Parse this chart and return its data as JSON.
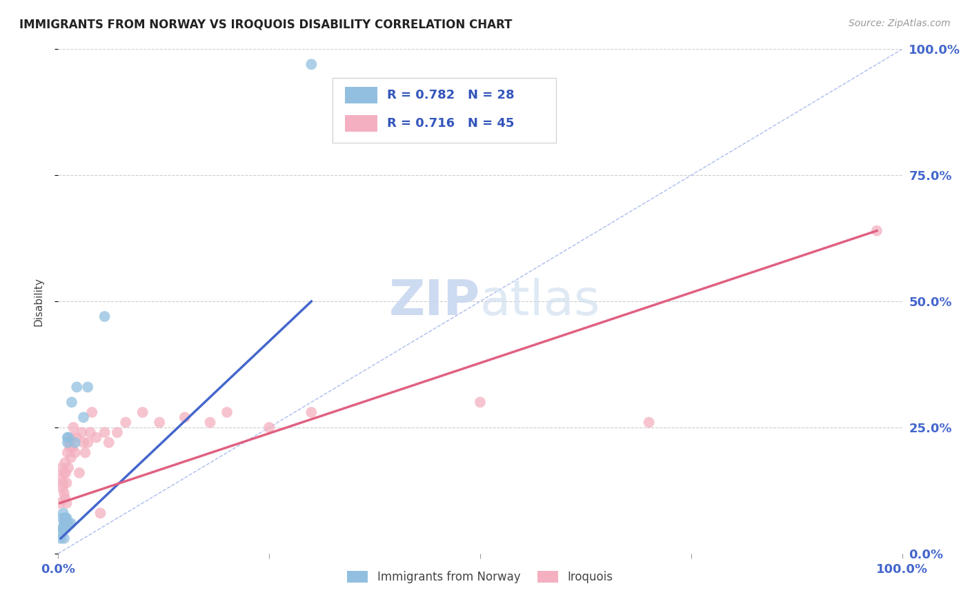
{
  "title": "IMMIGRANTS FROM NORWAY VS IROQUOIS DISABILITY CORRELATION CHART",
  "source": "Source: ZipAtlas.com",
  "ylabel": "Disability",
  "xlim": [
    0,
    100
  ],
  "ylim": [
    0,
    100
  ],
  "xtick_positions": [
    0,
    25,
    50,
    75,
    100
  ],
  "xtick_labels_show": [
    "0.0%",
    "100.0%"
  ],
  "xtick_labels_show_pos": [
    0,
    100
  ],
  "ytick_positions": [
    0,
    25,
    50,
    75,
    100
  ],
  "ytick_labels": [
    "0.0%",
    "25.0%",
    "50.0%",
    "75.0%",
    "100.0%"
  ],
  "norway_color": "#92bfdf",
  "iroquois_color": "#f4b0c0",
  "norway_line_color": "#4466cc",
  "iroquois_line_color": "#e06080",
  "diagonal_color": "#aabbee",
  "legend_R_norway": "0.782",
  "legend_N_norway": "28",
  "legend_R_iroquois": "0.716",
  "legend_N_iroquois": "45",
  "norway_x": [
    0.3,
    0.4,
    0.5,
    0.5,
    0.6,
    0.6,
    0.7,
    0.7,
    0.7,
    0.8,
    0.8,
    0.8,
    0.9,
    0.9,
    1.0,
    1.0,
    1.1,
    1.1,
    1.2,
    1.2,
    1.5,
    1.6,
    2.0,
    2.2,
    3.0,
    3.5,
    5.5,
    30.0
  ],
  "norway_y": [
    3,
    4,
    5,
    7,
    5,
    8,
    3,
    5,
    6,
    6,
    7,
    7,
    5,
    7,
    6,
    7,
    22,
    23,
    6,
    23,
    6,
    30,
    22,
    33,
    27,
    33,
    47,
    97
  ],
  "iroquois_x": [
    0.2,
    0.3,
    0.4,
    0.5,
    0.6,
    0.7,
    0.7,
    0.8,
    0.8,
    0.9,
    1.0,
    1.0,
    1.1,
    1.2,
    1.3,
    1.4,
    1.5,
    1.6,
    1.7,
    1.8,
    2.0,
    2.2,
    2.5,
    2.8,
    3.0,
    3.2,
    3.5,
    3.8,
    4.0,
    4.5,
    5.0,
    5.5,
    6.0,
    7.0,
    8.0,
    10.0,
    12.0,
    15.0,
    18.0,
    20.0,
    25.0,
    30.0,
    50.0,
    70.0,
    97.0
  ],
  "iroquois_y": [
    10,
    15,
    17,
    13,
    14,
    16,
    12,
    11,
    18,
    16,
    14,
    10,
    20,
    17,
    22,
    21,
    19,
    23,
    21,
    25,
    20,
    23,
    16,
    24,
    22,
    20,
    22,
    24,
    28,
    23,
    8,
    24,
    22,
    24,
    26,
    28,
    26,
    27,
    26,
    28,
    25,
    28,
    30,
    26,
    64
  ],
  "norway_line_x": [
    0.3,
    30.0
  ],
  "norway_line_y": [
    3.0,
    50.0
  ],
  "iroquois_line_x": [
    0.2,
    97.0
  ],
  "iroquois_line_y": [
    10.0,
    64.0
  ],
  "background_color": "#ffffff",
  "grid_color": "#cccccc",
  "tick_color": "#4466cc",
  "label_fontsize": 13,
  "title_fontsize": 12
}
